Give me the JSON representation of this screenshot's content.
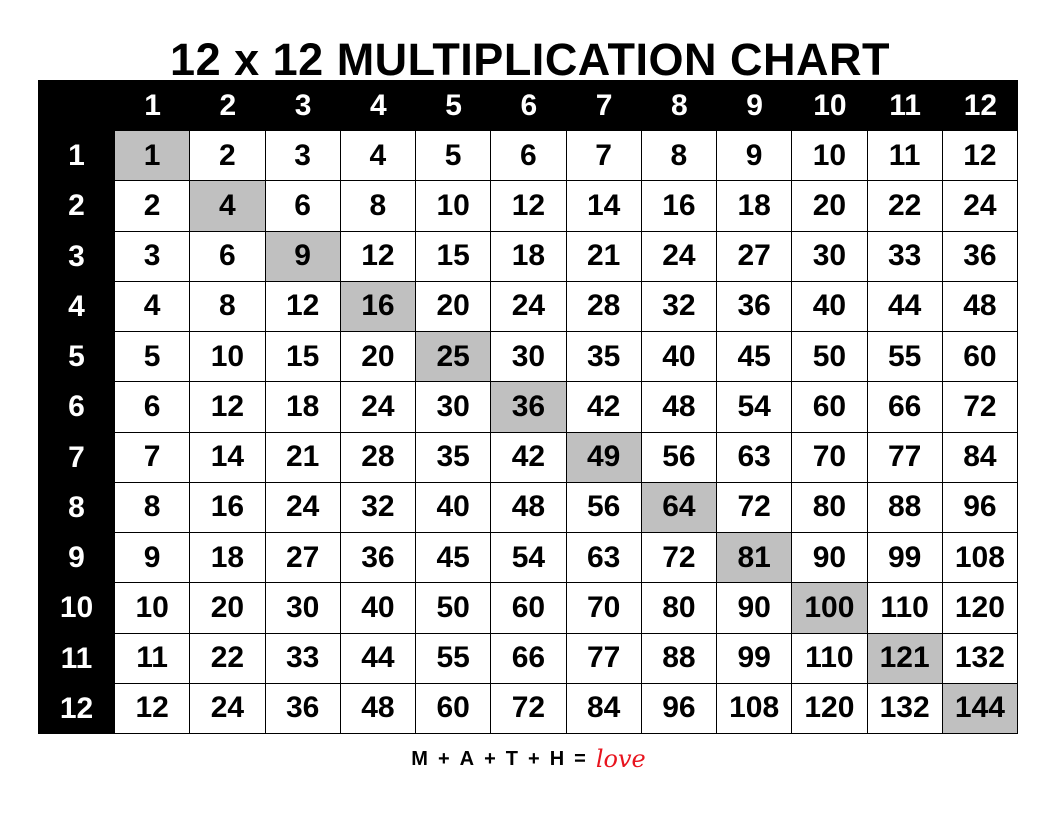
{
  "title": "12 x 12 MULTIPLICATION CHART",
  "column_headers": [
    "1",
    "2",
    "3",
    "4",
    "5",
    "6",
    "7",
    "8",
    "9",
    "10",
    "11",
    "12"
  ],
  "row_headers": [
    "1",
    "2",
    "3",
    "4",
    "5",
    "6",
    "7",
    "8",
    "9",
    "10",
    "11",
    "12"
  ],
  "rows": [
    [
      1,
      2,
      3,
      4,
      5,
      6,
      7,
      8,
      9,
      10,
      11,
      12
    ],
    [
      2,
      4,
      6,
      8,
      10,
      12,
      14,
      16,
      18,
      20,
      22,
      24
    ],
    [
      3,
      6,
      9,
      12,
      15,
      18,
      21,
      24,
      27,
      30,
      33,
      36
    ],
    [
      4,
      8,
      12,
      16,
      20,
      24,
      28,
      32,
      36,
      40,
      44,
      48
    ],
    [
      5,
      10,
      15,
      20,
      25,
      30,
      35,
      40,
      45,
      50,
      55,
      60
    ],
    [
      6,
      12,
      18,
      24,
      30,
      36,
      42,
      48,
      54,
      60,
      66,
      72
    ],
    [
      7,
      14,
      21,
      28,
      35,
      42,
      49,
      56,
      63,
      70,
      77,
      84
    ],
    [
      8,
      16,
      24,
      32,
      40,
      48,
      56,
      64,
      72,
      80,
      88,
      96
    ],
    [
      9,
      18,
      27,
      36,
      45,
      54,
      63,
      72,
      81,
      90,
      99,
      108
    ],
    [
      10,
      20,
      30,
      40,
      50,
      60,
      70,
      80,
      90,
      100,
      110,
      120
    ],
    [
      11,
      22,
      33,
      44,
      55,
      66,
      77,
      88,
      99,
      110,
      121,
      132
    ],
    [
      12,
      24,
      36,
      48,
      60,
      72,
      84,
      96,
      108,
      120,
      132,
      144
    ]
  ],
  "colors": {
    "header_bg": "#000000",
    "diagonal_highlight": "#c0c0c0",
    "love": "#e8141e"
  },
  "footer": {
    "parts": [
      "M",
      "+",
      "A",
      "+",
      "T",
      "+",
      "H",
      "="
    ],
    "love": "love"
  }
}
